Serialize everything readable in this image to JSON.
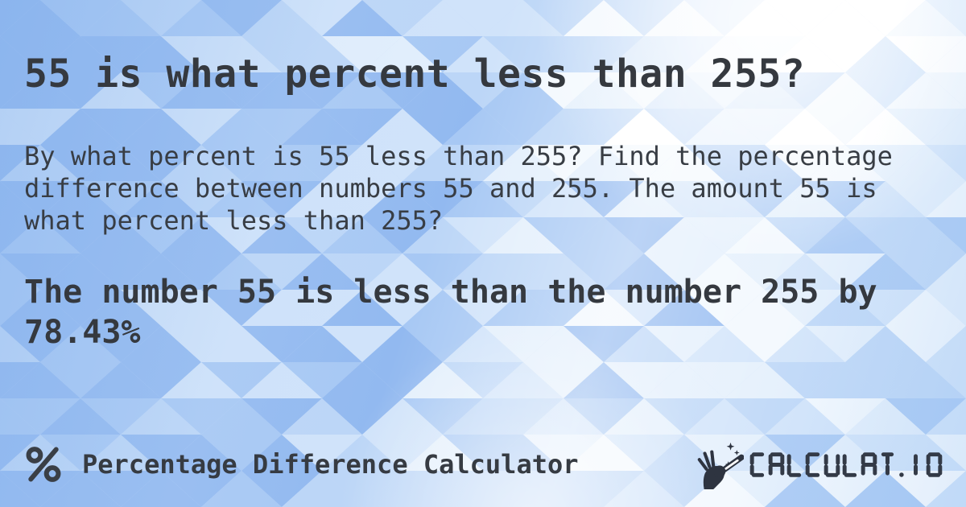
{
  "page": {
    "title": "55 is what percent less than 255?"
  },
  "intro": {
    "lines": [
      "By what percent is 55 less than 255? Find the percentage",
      "difference between numbers 55 and 255. The amount 55 is",
      "what percent less than 255?"
    ]
  },
  "answer": {
    "lines": [
      "The number 55 is less than the number 255 by",
      "78.43%"
    ],
    "percent_value": "78.43%"
  },
  "footer": {
    "app_icon": "percent-icon",
    "app_name": "Percentage Difference Calculator",
    "logo_icon": "magic-wand-hand-icon",
    "logo_text": "CALCULAT.IO"
  },
  "colors": {
    "text": "#383d44",
    "title_text": "#35393f",
    "logo_color": "#333a47",
    "icon_color": "#3a3f46",
    "background_base": "#cadef9",
    "pattern_palette": [
      "#ffffff",
      "#f2f8fe",
      "#e3effc",
      "#d0e3fa",
      "#bcd6f7",
      "#a7c8f4",
      "#92b9f0"
    ]
  }
}
